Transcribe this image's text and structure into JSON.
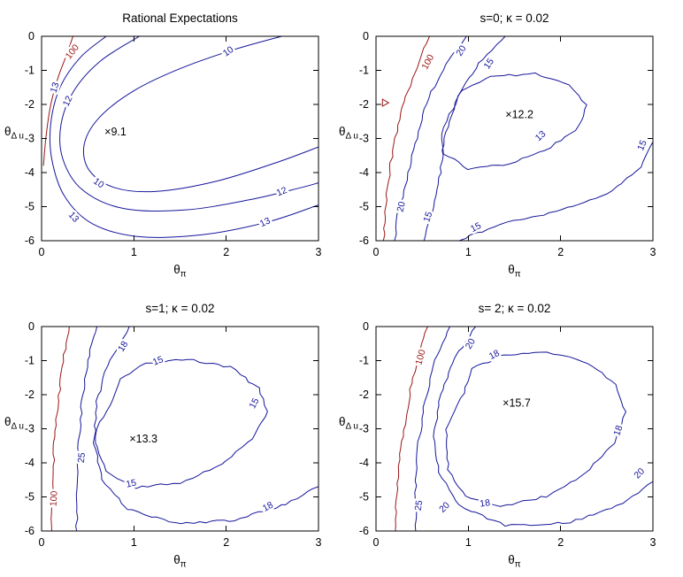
{
  "colors": {
    "blue": "#16169b",
    "red": "#9b1616",
    "axis": "#000000",
    "text": "#000000"
  },
  "chart_data": [
    {
      "type": "contour",
      "title": "Rational Expectations",
      "xlabel_base": "θ",
      "xlabel_sub": "π",
      "ylabel_base": "θ",
      "ylabel_sub": "Δ u",
      "xlim": [
        0,
        3
      ],
      "ylim": [
        -6,
        0
      ],
      "xticks": [
        0,
        1,
        2,
        3
      ],
      "yticks": [
        0,
        -1,
        -2,
        -3,
        -4,
        -5,
        -6
      ],
      "min_point": {
        "x": 0.73,
        "y": -2.8,
        "label": "9.1",
        "marker": "×"
      },
      "contours": [
        {
          "level": "10",
          "color": "blue",
          "closed": false,
          "wobble": false,
          "points": [
            [
              2.6,
              0
            ],
            [
              2.05,
              -0.42
            ],
            [
              1.5,
              -0.95
            ],
            [
              1.0,
              -1.6
            ],
            [
              0.62,
              -2.4
            ],
            [
              0.46,
              -3.2
            ],
            [
              0.52,
              -3.95
            ],
            [
              0.8,
              -4.45
            ],
            [
              1.25,
              -4.55
            ],
            [
              1.9,
              -4.25
            ],
            [
              2.55,
              -3.7
            ],
            [
              3.0,
              -3.25
            ]
          ],
          "labels": [
            {
              "x": 2.02,
              "y": -0.44,
              "rot": -35
            },
            {
              "x": 0.62,
              "y": -4.3,
              "rot": 35
            }
          ]
        },
        {
          "level": "12",
          "color": "blue",
          "closed": false,
          "wobble": false,
          "points": [
            [
              1.06,
              0
            ],
            [
              0.64,
              -0.72
            ],
            [
              0.35,
              -1.6
            ],
            [
              0.21,
              -2.6
            ],
            [
              0.23,
              -3.6
            ],
            [
              0.44,
              -4.5
            ],
            [
              0.88,
              -5.05
            ],
            [
              1.55,
              -5.1
            ],
            [
              2.25,
              -4.8
            ],
            [
              2.8,
              -4.45
            ],
            [
              3.0,
              -4.3
            ]
          ],
          "labels": [
            {
              "x": 0.28,
              "y": -1.9,
              "rot": -65
            },
            {
              "x": 2.6,
              "y": -4.55,
              "rot": -22
            }
          ]
        },
        {
          "level": "13",
          "color": "blue",
          "closed": false,
          "wobble": false,
          "points": [
            [
              0.7,
              0
            ],
            [
              0.42,
              -0.62
            ],
            [
              0.2,
              -1.5
            ],
            [
              0.1,
              -2.55
            ],
            [
              0.11,
              -3.6
            ],
            [
              0.25,
              -4.7
            ],
            [
              0.55,
              -5.5
            ],
            [
              1.05,
              -5.88
            ],
            [
              1.75,
              -5.82
            ],
            [
              2.45,
              -5.45
            ],
            [
              3.0,
              -4.95
            ]
          ],
          "labels": [
            {
              "x": 0.14,
              "y": -1.5,
              "rot": -72
            },
            {
              "x": 0.35,
              "y": -5.3,
              "rot": 48
            },
            {
              "x": 2.42,
              "y": -5.45,
              "rot": -25
            }
          ]
        },
        {
          "level": "100",
          "color": "red",
          "closed": false,
          "wobble": false,
          "points": [
            [
              0.34,
              0
            ],
            [
              0.27,
              -0.55
            ],
            [
              0.18,
              -1.2
            ],
            [
              0.1,
              -2.0
            ],
            [
              0.05,
              -2.9
            ],
            [
              0.02,
              -3.8
            ]
          ],
          "labels": [
            {
              "x": 0.33,
              "y": -0.45,
              "rot": -52
            }
          ]
        }
      ]
    },
    {
      "type": "contour",
      "title": "s=0; κ = 0.02",
      "xlabel_base": "θ",
      "xlabel_sub": "π",
      "ylabel_base": "θ",
      "ylabel_sub": "Δ u",
      "xlim": [
        0,
        3
      ],
      "ylim": [
        -6,
        0
      ],
      "xticks": [
        0,
        1,
        2,
        3
      ],
      "yticks": [
        0,
        -1,
        -2,
        -3,
        -4,
        -5,
        -6
      ],
      "min_point": {
        "x": 1.45,
        "y": -2.3,
        "label": "12.2",
        "marker": "×"
      },
      "markers": [
        {
          "shape": "triangle",
          "x": 0.07,
          "y": -1.95,
          "color": "red"
        }
      ],
      "contours": [
        {
          "level": "100",
          "color": "red",
          "closed": false,
          "wobble": true,
          "points": [
            [
              0.58,
              0
            ],
            [
              0.46,
              -0.75
            ],
            [
              0.34,
              -1.6
            ],
            [
              0.24,
              -2.6
            ],
            [
              0.16,
              -3.7
            ],
            [
              0.11,
              -4.8
            ],
            [
              0.08,
              -6
            ]
          ],
          "labels": [
            {
              "x": 0.56,
              "y": -0.75,
              "rot": -62
            }
          ]
        },
        {
          "level": "20",
          "color": "blue",
          "closed": false,
          "wobble": true,
          "points": [
            [
              0.98,
              0
            ],
            [
              0.76,
              -0.8
            ],
            [
              0.57,
              -1.8
            ],
            [
              0.44,
              -3.0
            ],
            [
              0.33,
              -4.2
            ],
            [
              0.24,
              -5.2
            ],
            [
              0.2,
              -6
            ]
          ],
          "labels": [
            {
              "x": 0.92,
              "y": -0.42,
              "rot": -58
            },
            {
              "x": 0.27,
              "y": -5.0,
              "rot": -78
            }
          ]
        },
        {
          "level": "15",
          "color": "blue",
          "closed": false,
          "wobble": true,
          "points": [
            [
              1.4,
              0
            ],
            [
              1.12,
              -0.8
            ],
            [
              0.88,
              -1.8
            ],
            [
              0.74,
              -3.0
            ],
            [
              0.7,
              -4.0
            ],
            [
              0.62,
              -5.0
            ],
            [
              0.52,
              -6
            ]
          ],
          "labels": [
            {
              "x": 1.22,
              "y": -0.8,
              "rot": -55
            },
            {
              "x": 0.56,
              "y": -5.3,
              "rot": -72
            }
          ]
        },
        {
          "level": "15",
          "color": "blue",
          "closed": false,
          "wobble": true,
          "points": [
            [
              0.9,
              -6
            ],
            [
              1.35,
              -5.5
            ],
            [
              1.95,
              -5.15
            ],
            [
              2.5,
              -4.65
            ],
            [
              2.87,
              -3.85
            ],
            [
              3.0,
              -3.1
            ]
          ],
          "labels": [
            {
              "x": 1.08,
              "y": -5.6,
              "rot": -28
            },
            {
              "x": 2.88,
              "y": -3.2,
              "rot": -68
            }
          ]
        },
        {
          "level": "13",
          "color": "blue",
          "closed": true,
          "wobble": true,
          "points": [
            [
              0.8,
              -2.3
            ],
            [
              0.92,
              -1.6
            ],
            [
              1.25,
              -1.18
            ],
            [
              1.72,
              -1.1
            ],
            [
              2.1,
              -1.42
            ],
            [
              2.28,
              -2.0
            ],
            [
              2.2,
              -2.65
            ],
            [
              1.9,
              -3.25
            ],
            [
              1.45,
              -3.75
            ],
            [
              1.0,
              -3.9
            ],
            [
              0.74,
              -3.45
            ],
            [
              0.7,
              -2.85
            ]
          ],
          "labels": [
            {
              "x": 1.78,
              "y": -2.92,
              "rot": -42
            }
          ]
        }
      ]
    },
    {
      "type": "contour",
      "title": "s=1; κ = 0.02",
      "xlabel_base": "θ",
      "xlabel_sub": "π",
      "ylabel_base": "θ",
      "ylabel_sub": "Δ u",
      "xlim": [
        0,
        3
      ],
      "ylim": [
        -6,
        0
      ],
      "xticks": [
        0,
        1,
        2,
        3
      ],
      "yticks": [
        0,
        -1,
        -2,
        -3,
        -4,
        -5,
        -6
      ],
      "min_point": {
        "x": 1.0,
        "y": -3.3,
        "label": "13.3",
        "marker": "×"
      },
      "contours": [
        {
          "level": "100",
          "color": "red",
          "closed": false,
          "wobble": true,
          "points": [
            [
              0.3,
              0
            ],
            [
              0.23,
              -1.0
            ],
            [
              0.18,
              -2.2
            ],
            [
              0.14,
              -3.4
            ],
            [
              0.12,
              -4.6
            ],
            [
              0.11,
              -6
            ]
          ],
          "labels": [
            {
              "x": 0.13,
              "y": -5.05,
              "rot": -86
            }
          ]
        },
        {
          "level": "25",
          "color": "blue",
          "closed": false,
          "wobble": true,
          "points": [
            [
              0.6,
              0
            ],
            [
              0.5,
              -1.0
            ],
            [
              0.44,
              -2.2
            ],
            [
              0.4,
              -3.4
            ],
            [
              0.38,
              -4.6
            ],
            [
              0.38,
              -6
            ]
          ],
          "labels": [
            {
              "x": 0.43,
              "y": -3.85,
              "rot": -84
            }
          ]
        },
        {
          "level": "18",
          "color": "blue",
          "closed": false,
          "wobble": true,
          "points": [
            [
              0.95,
              0
            ],
            [
              0.73,
              -1.0
            ],
            [
              0.6,
              -2.2
            ],
            [
              0.57,
              -3.4
            ],
            [
              0.65,
              -4.5
            ],
            [
              0.92,
              -5.35
            ],
            [
              1.45,
              -5.78
            ],
            [
              2.1,
              -5.68
            ],
            [
              2.65,
              -5.2
            ],
            [
              3.0,
              -4.7
            ]
          ],
          "labels": [
            {
              "x": 0.88,
              "y": -0.58,
              "rot": -58
            },
            {
              "x": 2.45,
              "y": -5.28,
              "rot": -28
            }
          ]
        },
        {
          "level": "15",
          "color": "blue",
          "closed": true,
          "wobble": true,
          "points": [
            [
              0.75,
              -2.3
            ],
            [
              0.85,
              -1.55
            ],
            [
              1.12,
              -1.08
            ],
            [
              1.58,
              -0.95
            ],
            [
              2.05,
              -1.2
            ],
            [
              2.35,
              -1.8
            ],
            [
              2.45,
              -2.5
            ],
            [
              2.28,
              -3.3
            ],
            [
              1.95,
              -4.05
            ],
            [
              1.5,
              -4.58
            ],
            [
              1.02,
              -4.72
            ],
            [
              0.7,
              -4.25
            ],
            [
              0.58,
              -3.4
            ],
            [
              0.62,
              -2.8
            ]
          ],
          "labels": [
            {
              "x": 1.26,
              "y": -1.0,
              "rot": -22
            },
            {
              "x": 2.3,
              "y": -2.25,
              "rot": -62
            },
            {
              "x": 0.97,
              "y": -4.6,
              "rot": -12
            }
          ]
        }
      ]
    },
    {
      "type": "contour",
      "title": "s= 2; κ = 0.02",
      "xlabel_base": "θ",
      "xlabel_sub": "π",
      "ylabel_base": "θ",
      "ylabel_sub": "Δ u",
      "xlim": [
        0,
        3
      ],
      "ylim": [
        -6,
        0
      ],
      "xticks": [
        0,
        1,
        2,
        3
      ],
      "yticks": [
        0,
        -1,
        -2,
        -3,
        -4,
        -5,
        -6
      ],
      "min_point": {
        "x": 1.42,
        "y": -2.25,
        "label": "15.7",
        "marker": "×"
      },
      "contours": [
        {
          "level": "100",
          "color": "red",
          "closed": false,
          "wobble": true,
          "points": [
            [
              0.56,
              0
            ],
            [
              0.44,
              -1.0
            ],
            [
              0.35,
              -2.2
            ],
            [
              0.28,
              -3.4
            ],
            [
              0.23,
              -4.6
            ],
            [
              0.21,
              -6
            ]
          ],
          "labels": [
            {
              "x": 0.48,
              "y": -0.9,
              "rot": -74
            }
          ]
        },
        {
          "level": "25",
          "color": "blue",
          "closed": false,
          "wobble": true,
          "points": [
            [
              0.8,
              0
            ],
            [
              0.64,
              -1.0
            ],
            [
              0.53,
              -2.2
            ],
            [
              0.46,
              -3.4
            ],
            [
              0.43,
              -4.7
            ],
            [
              0.43,
              -6
            ]
          ],
          "labels": [
            {
              "x": 0.46,
              "y": -5.25,
              "rot": -82
            }
          ]
        },
        {
          "level": "20",
          "color": "blue",
          "closed": false,
          "wobble": true,
          "points": [
            [
              1.08,
              0
            ],
            [
              0.86,
              -0.9
            ],
            [
              0.7,
              -2.0
            ],
            [
              0.63,
              -3.2
            ],
            [
              0.68,
              -4.3
            ],
            [
              0.9,
              -5.25
            ],
            [
              1.4,
              -5.85
            ],
            [
              2.1,
              -5.75
            ],
            [
              2.68,
              -5.2
            ],
            [
              3.0,
              -4.55
            ]
          ],
          "labels": [
            {
              "x": 1.02,
              "y": -0.5,
              "rot": -60
            },
            {
              "x": 0.74,
              "y": -5.3,
              "rot": -45
            },
            {
              "x": 2.85,
              "y": -4.3,
              "rot": -45
            }
          ]
        },
        {
          "level": "18",
          "color": "blue",
          "closed": true,
          "wobble": true,
          "points": [
            [
              0.95,
              -1.95
            ],
            [
              1.04,
              -1.25
            ],
            [
              1.38,
              -0.82
            ],
            [
              1.85,
              -0.75
            ],
            [
              2.3,
              -1.05
            ],
            [
              2.6,
              -1.7
            ],
            [
              2.7,
              -2.5
            ],
            [
              2.58,
              -3.4
            ],
            [
              2.28,
              -4.3
            ],
            [
              1.85,
              -4.98
            ],
            [
              1.35,
              -5.28
            ],
            [
              0.97,
              -5.0
            ],
            [
              0.78,
              -4.2
            ],
            [
              0.76,
              -3.0
            ]
          ],
          "labels": [
            {
              "x": 1.28,
              "y": -0.82,
              "rot": -28
            },
            {
              "x": 2.62,
              "y": -3.05,
              "rot": -72
            },
            {
              "x": 1.18,
              "y": -5.18,
              "rot": -8
            }
          ]
        }
      ]
    }
  ]
}
